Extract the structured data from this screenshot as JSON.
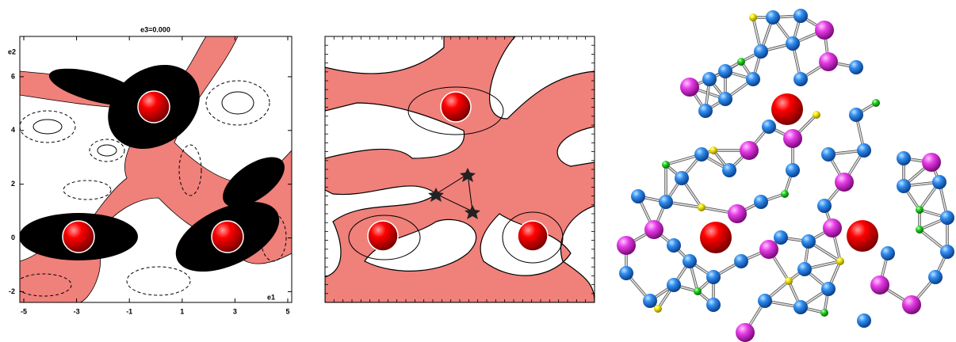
{
  "panel_a": {
    "title": "e3=0.000",
    "x_label": "e1",
    "y_label": "e2",
    "xlim": [
      -5.15,
      5.15
    ],
    "ylim": [
      -2.4,
      7.5
    ],
    "xticks": [
      -5,
      -3,
      -1,
      1,
      3,
      5
    ],
    "yticks": [
      6,
      4,
      2,
      0,
      -2
    ]
  }
}
